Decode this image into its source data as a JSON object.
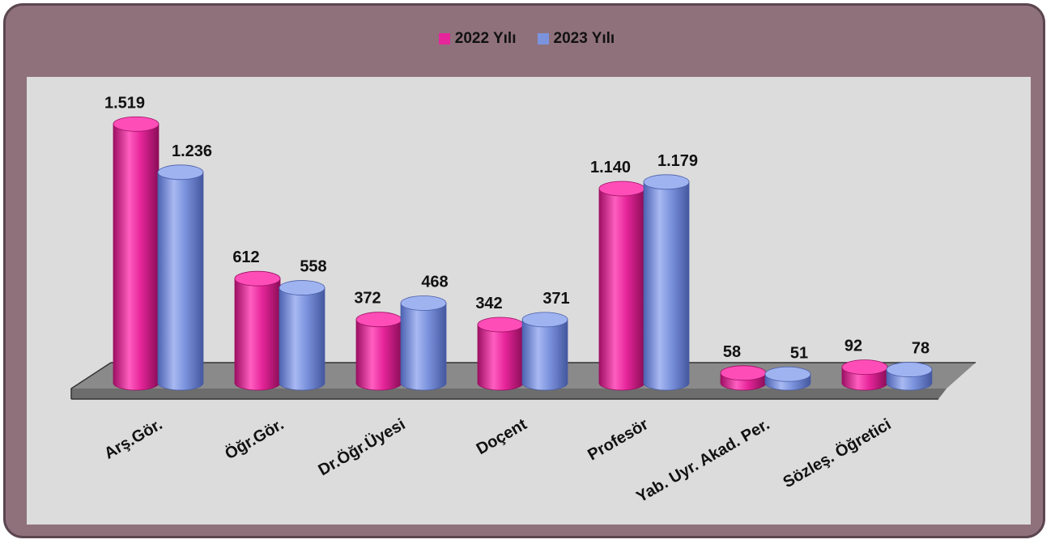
{
  "chart_data": {
    "type": "bar",
    "categories": [
      "Arş.Gör.",
      "Öğr.Gör.",
      "Dr.Öğr.Üyesi",
      "Doçent",
      "Profesör",
      "Yab. Uyr. Akad. Per.",
      "Sözleş. Öğretici"
    ],
    "series": [
      {
        "name": "2022 Yılı",
        "values": [
          1519,
          612,
          372,
          342,
          1140,
          58,
          92
        ],
        "labels": [
          "1.519",
          "612",
          "372",
          "342",
          "1.140",
          "58",
          "92"
        ],
        "color": "#e6259a"
      },
      {
        "name": "2023 Yılı",
        "values": [
          1236,
          558,
          468,
          371,
          1179,
          51,
          78
        ],
        "labels": [
          "1.236",
          "558",
          "468",
          "371",
          "1.179",
          "51",
          "78"
        ],
        "color": "#7b93dd"
      }
    ],
    "title": "",
    "xlabel": "",
    "ylabel": "",
    "ylim": [
      0,
      1600
    ],
    "grid": false,
    "legend_position": "top-center",
    "style": "3d-cylinder"
  },
  "colors": {
    "frame": "#8f717c",
    "plot_background": "#dcdcdc",
    "floor": "#8a8a8a"
  }
}
